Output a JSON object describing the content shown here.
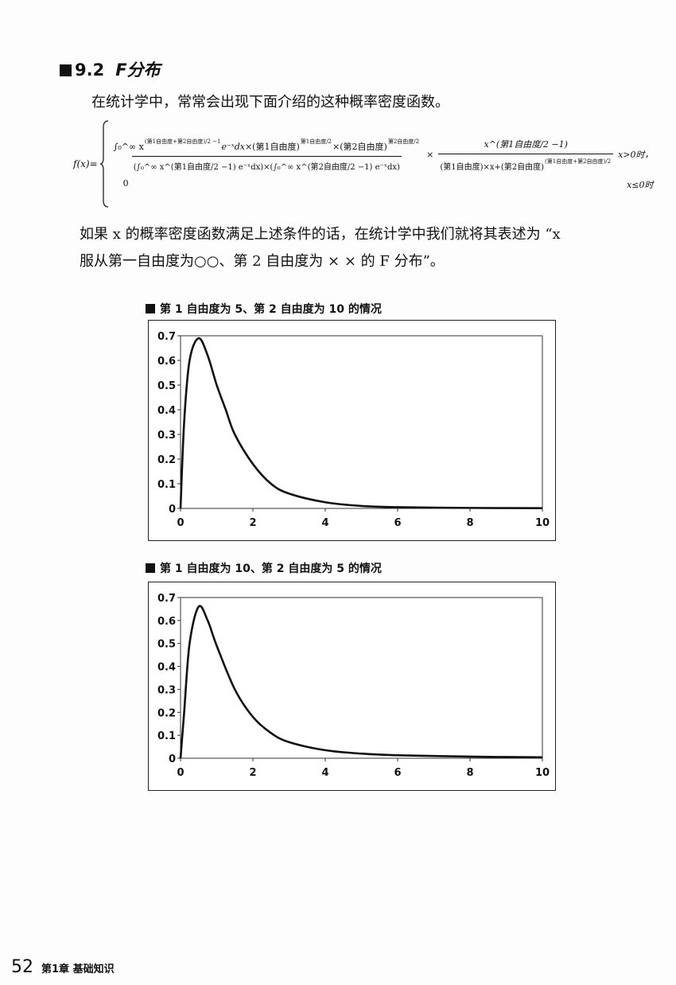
{
  "section": {
    "number": "9.2",
    "title": "F分布"
  },
  "intro": "在统计学中，常常会出现下面介绍的这种概率密度函数。",
  "formula": {
    "lhs": "f(x)=",
    "num_integral": "∫₀^∞ x",
    "num_exp": "(第1自由度+第2自由度)/2 −1",
    "e_term": "e⁻ˣdx",
    "df1_term": "×(第1自由度)",
    "df1_exp": "第1自由度/2",
    "df2_term": "×(第2自由度)",
    "df2_exp": "第2自由度/2",
    "den1": "(∫₀^∞ x^(第1自由度/2 −1) e⁻ˣdx)",
    "den2": "×(∫₀^∞ x^(第2自由度/2 −1) e⁻ˣdx)",
    "times": "×",
    "right_num": "x^(第1自由度/2 −1)",
    "right_den": "(第1自由度)×x+(第2自由度)",
    "right_den_exp": "(第1自由度+第2自由度)/2",
    "cond1": "x>0时，",
    "zero": "0",
    "cond2": "x≤0时"
  },
  "paragraph": [
    "如果 x 的概率密度函数满足上述条件的话，在统计学中我们就将其表述为 “x",
    "服从第一自由度为○○、第 2 自由度为 × × 的 F 分布”。"
  ],
  "chart_data": [
    {
      "type": "line",
      "title": "第 1 自由度为 5、第 2 自由度为 10 的情况",
      "xlim": [
        0,
        10
      ],
      "ylim": [
        0,
        0.7
      ],
      "xticks": [
        "0",
        "2",
        "4",
        "6",
        "8",
        "10"
      ],
      "yticks": [
        "0",
        "0.1",
        "0.2",
        "0.3",
        "0.4",
        "0.5",
        "0.6",
        "0.7"
      ],
      "grid": false,
      "x": [
        0,
        0.1,
        0.25,
        0.5,
        0.75,
        1,
        1.25,
        1.5,
        2,
        2.5,
        3,
        4,
        5,
        6,
        8,
        10
      ],
      "y": [
        0,
        0.35,
        0.6,
        0.69,
        0.62,
        0.5,
        0.4,
        0.3,
        0.18,
        0.1,
        0.06,
        0.025,
        0.01,
        0.005,
        0.002,
        0.001
      ]
    },
    {
      "type": "line",
      "title": "第 1 自由度为 10、第 2 自由度为 5 的情况",
      "xlim": [
        0,
        10
      ],
      "ylim": [
        0,
        0.7
      ],
      "xticks": [
        "0",
        "2",
        "4",
        "6",
        "8",
        "10"
      ],
      "yticks": [
        "0",
        "0.1",
        "0.2",
        "0.3",
        "0.4",
        "0.5",
        "0.6",
        "0.7"
      ],
      "grid": false,
      "x": [
        0,
        0.1,
        0.25,
        0.5,
        0.75,
        1,
        1.5,
        2,
        2.5,
        3,
        4,
        5,
        6,
        8,
        10
      ],
      "y": [
        0,
        0.2,
        0.5,
        0.66,
        0.6,
        0.49,
        0.3,
        0.18,
        0.11,
        0.07,
        0.035,
        0.02,
        0.013,
        0.007,
        0.004
      ]
    }
  ],
  "footer": {
    "page": "52",
    "chapter": "第1章 基础知识"
  }
}
